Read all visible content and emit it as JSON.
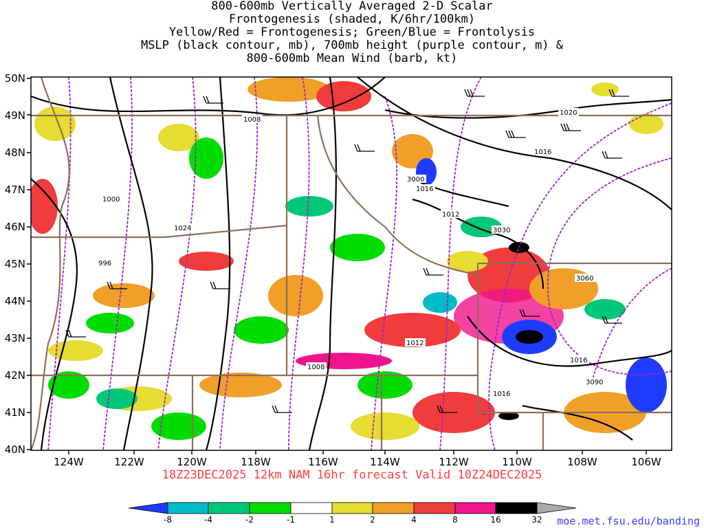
{
  "title_lines": [
    "800-600mb Vertically Averaged 2-D Scalar",
    "Frontogenesis (shaded, K/6hr/100km)",
    "Yellow/Red = Frontogenesis;  Green/Blue = Frontolysis",
    "MSLP (black contour, mb), 700mb height (purple contour, m) &",
    "800-600mb Mean Wind (barb, kt)"
  ],
  "forecast_label": "18Z23DEC2025 12km NAM 16hr forecast Valid 10Z24DEC2025",
  "source_url": "moe.met.fsu.edu/banding",
  "lat_labels": [
    "50N",
    "49N",
    "48N",
    "47N",
    "46N",
    "45N",
    "44N",
    "43N",
    "42N",
    "41N",
    "40N"
  ],
  "lon_labels": [
    "124W",
    "122W",
    "120W",
    "118W",
    "116W",
    "114W",
    "112W",
    "110W",
    "108W",
    "106W"
  ],
  "colorbar": {
    "labels": [
      "-8",
      "-4",
      "-2",
      "-1",
      "1",
      "2",
      "4",
      "8",
      "16",
      "32"
    ],
    "colors": [
      "#1e3cff",
      "#00bcc8",
      "#00c878",
      "#00dc00",
      "#ffffff",
      "#e6dc32",
      "#f0a028",
      "#f03c3c",
      "#f0148c",
      "#000000",
      "#aaaaaa"
    ]
  },
  "contour_labels": {
    "mslp": [
      "1008",
      "1020",
      "1016",
      "1000",
      "1024",
      "996",
      "1012",
      "1016",
      "1016",
      "1008",
      "1012",
      "1016"
    ],
    "height": [
      "3000",
      "3030",
      "3060",
      "3090"
    ]
  },
  "colors": {
    "border": "#8b6f5a",
    "mslp": "#000000",
    "height": "#a020c8",
    "forecast_text": "#ff3b3b",
    "url_text": "#3b3bff"
  }
}
